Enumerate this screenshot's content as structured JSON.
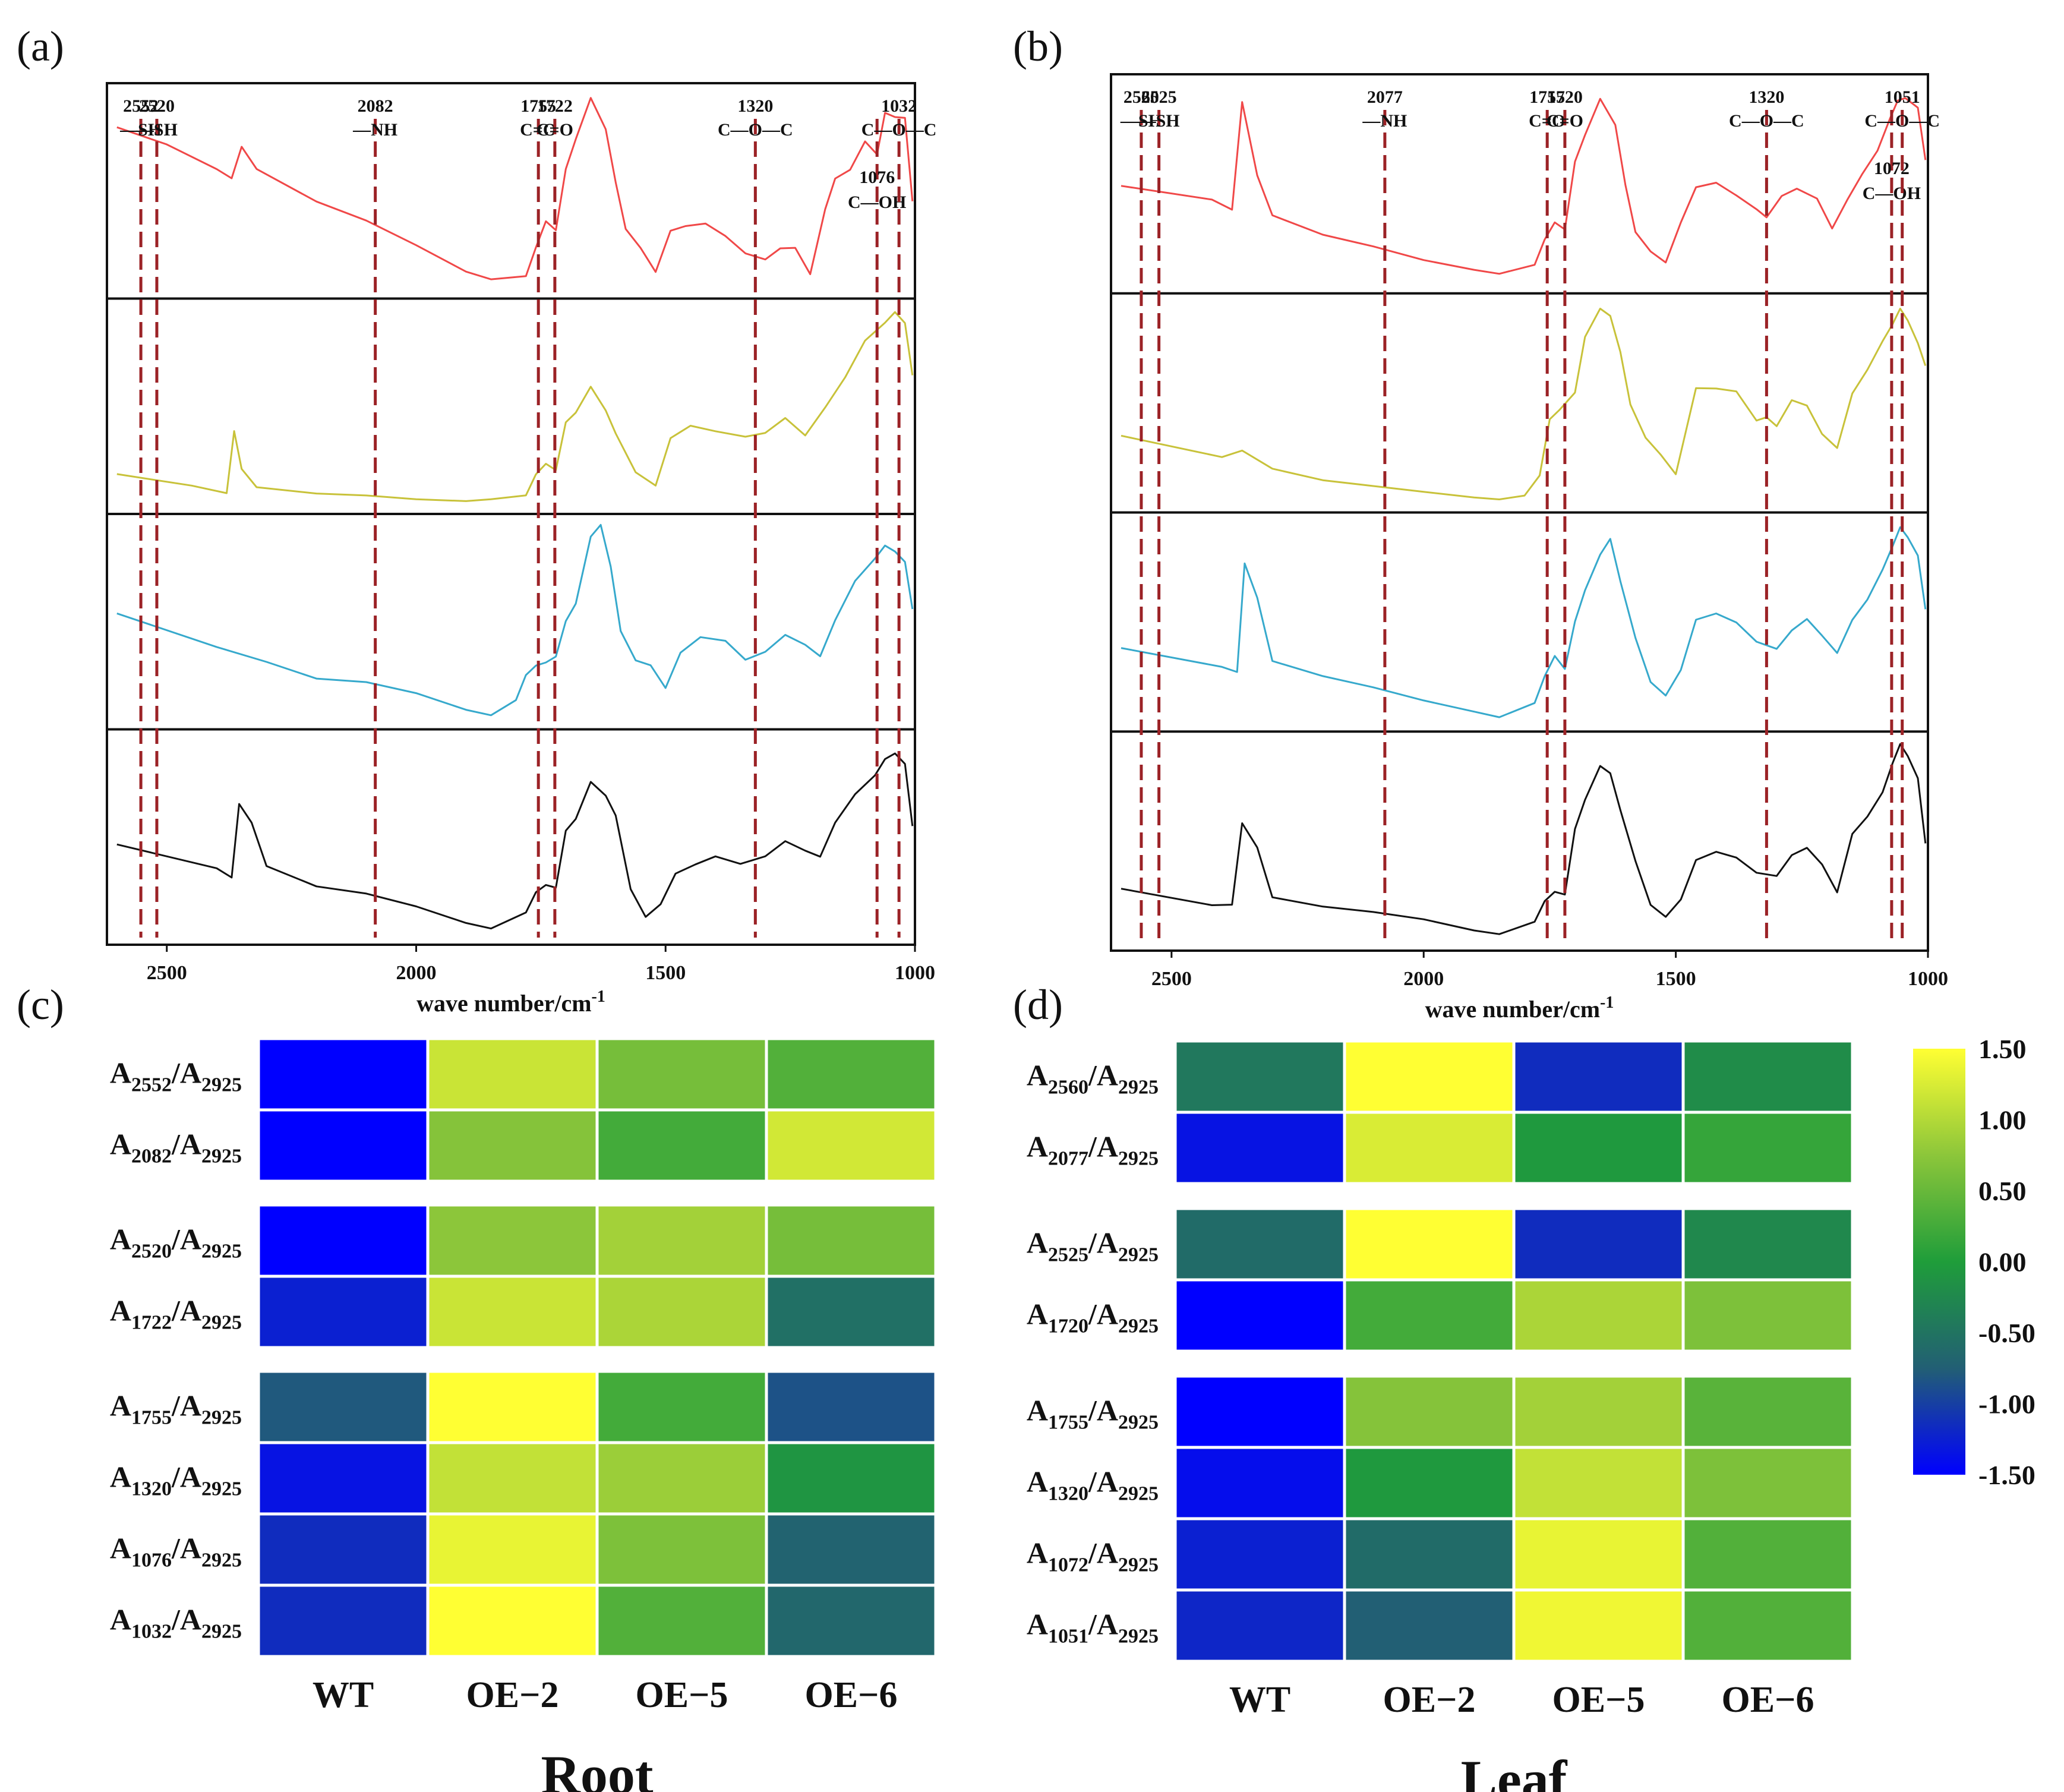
{
  "chart_data": [
    {
      "panel": "(a)",
      "type": "line",
      "title": "",
      "xlabel": "wave number/cm",
      "xlabel_superscript": "-1",
      "x_range": [
        2620,
        1000
      ],
      "x_ticks": [
        "2500",
        "2000",
        "1500",
        "1000"
      ],
      "grid": false,
      "series": [
        {
          "name": "red trace",
          "color": "#f04848",
          "x": [
            2600,
            2500,
            2400,
            2370,
            2350,
            2320,
            2200,
            2100,
            2000,
            1900,
            1850,
            1780,
            1760,
            1740,
            1720,
            1700,
            1680,
            1650,
            1620,
            1600,
            1580,
            1550,
            1520,
            1490,
            1460,
            1420,
            1380,
            1340,
            1300,
            1270,
            1240,
            1210,
            1180,
            1160,
            1130,
            1100,
            1076,
            1060,
            1040,
            1020,
            1005
          ],
          "y": [
            0.83,
            0.74,
            0.61,
            0.55,
            0.73,
            0.6,
            0.44,
            0.34,
            0.21,
            0.07,
            0.03,
            0.05,
            0.19,
            0.32,
            0.28,
            0.62,
            0.78,
            1.0,
            0.82,
            0.55,
            0.3,
            0.2,
            0.06,
            0.27,
            0.3,
            0.32,
            0.26,
            0.15,
            0.14,
            0.19,
            0.18,
            0.04,
            0.4,
            0.55,
            0.61,
            0.77,
            0.7,
            0.9,
            0.88,
            0.89,
            0.44
          ]
        },
        {
          "name": "yellow trace",
          "color": "#c8c23a",
          "x": [
            2600,
            2450,
            2380,
            2365,
            2350,
            2320,
            2200,
            2100,
            2000,
            1900,
            1850,
            1780,
            1760,
            1740,
            1720,
            1700,
            1680,
            1650,
            1620,
            1600,
            1560,
            1520,
            1490,
            1450,
            1400,
            1340,
            1300,
            1260,
            1220,
            1180,
            1140,
            1100,
            1060,
            1040,
            1020,
            1005
          ],
          "y": [
            0.14,
            0.08,
            0.04,
            0.35,
            0.17,
            0.06,
            0.04,
            0.03,
            0.01,
            0.0,
            0.01,
            0.02,
            0.12,
            0.18,
            0.16,
            0.42,
            0.46,
            0.61,
            0.48,
            0.36,
            0.13,
            0.08,
            0.32,
            0.4,
            0.37,
            0.33,
            0.36,
            0.42,
            0.35,
            0.48,
            0.65,
            0.85,
            0.93,
            1.0,
            0.95,
            0.65
          ]
        },
        {
          "name": "blue trace",
          "color": "#36a9cc",
          "x": [
            2600,
            2400,
            2300,
            2200,
            2100,
            2000,
            1900,
            1850,
            1800,
            1780,
            1760,
            1740,
            1720,
            1700,
            1680,
            1650,
            1630,
            1610,
            1590,
            1560,
            1530,
            1500,
            1470,
            1430,
            1380,
            1340,
            1300,
            1260,
            1220,
            1190,
            1160,
            1120,
            1080,
            1060,
            1040,
            1020,
            1005
          ],
          "y": [
            0.55,
            0.37,
            0.29,
            0.2,
            0.18,
            0.12,
            0.03,
            0.0,
            0.08,
            0.2,
            0.25,
            0.28,
            0.32,
            0.5,
            0.58,
            0.95,
            1.0,
            0.78,
            0.45,
            0.28,
            0.25,
            0.14,
            0.34,
            0.4,
            0.38,
            0.3,
            0.33,
            0.42,
            0.38,
            0.32,
            0.5,
            0.72,
            0.82,
            0.9,
            0.88,
            0.82,
            0.55
          ]
        },
        {
          "name": "black trace",
          "color": "#111111",
          "x": [
            2600,
            2400,
            2370,
            2355,
            2330,
            2300,
            2200,
            2100,
            2000,
            1900,
            1850,
            1780,
            1760,
            1740,
            1720,
            1700,
            1680,
            1650,
            1620,
            1600,
            1570,
            1540,
            1510,
            1480,
            1440,
            1400,
            1350,
            1300,
            1260,
            1220,
            1190,
            1160,
            1120,
            1080,
            1060,
            1040,
            1020,
            1005
          ],
          "y": [
            0.46,
            0.33,
            0.29,
            0.66,
            0.56,
            0.34,
            0.23,
            0.19,
            0.12,
            0.03,
            0.0,
            0.08,
            0.2,
            0.25,
            0.23,
            0.52,
            0.58,
            0.78,
            0.72,
            0.6,
            0.22,
            0.08,
            0.14,
            0.29,
            0.36,
            0.38,
            0.34,
            0.38,
            0.48,
            0.42,
            0.4,
            0.58,
            0.72,
            0.82,
            0.92,
            0.95,
            0.88,
            0.55
          ]
        }
      ],
      "dashed_markers": [
        {
          "x": 2552,
          "label": "2552",
          "group": "—SH"
        },
        {
          "x": 2520,
          "label": "2520",
          "group": "—SH"
        },
        {
          "x": 2082,
          "label": "2082",
          "group": "—NH"
        },
        {
          "x": 1755,
          "label": "1755",
          "group": "C=O"
        },
        {
          "x": 1722,
          "label": "1722",
          "group": "C=O"
        },
        {
          "x": 1320,
          "label": "1320",
          "group": "C—O—C"
        },
        {
          "x": 1076,
          "label": "1076",
          "group": "C—OH"
        },
        {
          "x": 1032,
          "label": "1032",
          "group": "C—O—C"
        }
      ]
    },
    {
      "panel": "(b)",
      "type": "line",
      "title": "",
      "xlabel": "wave number/cm",
      "xlabel_superscript": "-1",
      "x_range": [
        2620,
        1000
      ],
      "x_ticks": [
        "2500",
        "2000",
        "1500",
        "1000"
      ],
      "grid": false,
      "series": [
        {
          "name": "red trace",
          "color": "#f04848",
          "x": [
            2600,
            2420,
            2380,
            2360,
            2330,
            2300,
            2200,
            2100,
            2000,
            1900,
            1850,
            1780,
            1760,
            1740,
            1720,
            1700,
            1680,
            1650,
            1620,
            1600,
            1580,
            1550,
            1520,
            1490,
            1460,
            1420,
            1380,
            1340,
            1320,
            1290,
            1260,
            1220,
            1190,
            1160,
            1130,
            1100,
            1075,
            1060,
            1045,
            1020,
            1005
          ],
          "y": [
            0.48,
            0.4,
            0.37,
            0.93,
            0.55,
            0.33,
            0.23,
            0.17,
            0.1,
            0.05,
            0.03,
            0.08,
            0.2,
            0.28,
            0.25,
            0.62,
            0.76,
            0.95,
            0.8,
            0.5,
            0.25,
            0.15,
            0.08,
            0.28,
            0.47,
            0.5,
            0.44,
            0.35,
            0.32,
            0.42,
            0.46,
            0.42,
            0.25,
            0.4,
            0.55,
            0.68,
            0.85,
            0.92,
            0.95,
            0.9,
            0.62
          ]
        },
        {
          "name": "yellow trace",
          "color": "#c8c23a",
          "x": [
            2600,
            2400,
            2360,
            2300,
            2200,
            2100,
            2000,
            1900,
            1850,
            1800,
            1770,
            1750,
            1730,
            1700,
            1680,
            1650,
            1630,
            1610,
            1590,
            1560,
            1530,
            1500,
            1460,
            1420,
            1380,
            1340,
            1320,
            1300,
            1270,
            1240,
            1210,
            1180,
            1150,
            1120,
            1090,
            1070,
            1055,
            1040,
            1020,
            1005
          ],
          "y": [
            0.33,
            0.22,
            0.24,
            0.16,
            0.1,
            0.07,
            0.04,
            0.01,
            0.0,
            0.02,
            0.12,
            0.42,
            0.46,
            0.56,
            0.84,
            1.0,
            0.95,
            0.75,
            0.48,
            0.3,
            0.22,
            0.13,
            0.56,
            0.58,
            0.55,
            0.4,
            0.43,
            0.38,
            0.52,
            0.48,
            0.32,
            0.25,
            0.55,
            0.68,
            0.82,
            0.92,
            0.98,
            0.93,
            0.82,
            0.68
          ]
        },
        {
          "name": "blue trace",
          "color": "#36a9cc",
          "x": [
            2600,
            2400,
            2370,
            2355,
            2330,
            2300,
            2200,
            2100,
            2000,
            1900,
            1850,
            1780,
            1760,
            1740,
            1720,
            1700,
            1680,
            1650,
            1630,
            1610,
            1580,
            1550,
            1520,
            1490,
            1460,
            1420,
            1380,
            1340,
            1300,
            1270,
            1240,
            1210,
            1180,
            1150,
            1120,
            1090,
            1070,
            1055,
            1040,
            1020,
            1005
          ],
          "y": [
            0.37,
            0.27,
            0.24,
            0.8,
            0.62,
            0.3,
            0.22,
            0.16,
            0.09,
            0.03,
            0.0,
            0.06,
            0.2,
            0.32,
            0.26,
            0.5,
            0.65,
            0.85,
            0.92,
            0.7,
            0.4,
            0.18,
            0.12,
            0.25,
            0.5,
            0.55,
            0.48,
            0.4,
            0.35,
            0.46,
            0.52,
            0.42,
            0.32,
            0.5,
            0.62,
            0.78,
            0.9,
            0.98,
            0.95,
            0.85,
            0.55
          ]
        },
        {
          "name": "black trace",
          "color": "#111111",
          "x": [
            2600,
            2420,
            2380,
            2360,
            2330,
            2300,
            2200,
            2100,
            2000,
            1900,
            1850,
            1780,
            1760,
            1740,
            1720,
            1700,
            1680,
            1650,
            1630,
            1610,
            1580,
            1550,
            1520,
            1490,
            1460,
            1420,
            1380,
            1340,
            1300,
            1270,
            1240,
            1210,
            1180,
            1150,
            1120,
            1090,
            1070,
            1055,
            1040,
            1020,
            1005
          ],
          "y": [
            0.25,
            0.17,
            0.15,
            0.58,
            0.45,
            0.2,
            0.15,
            0.12,
            0.08,
            0.02,
            0.0,
            0.06,
            0.18,
            0.24,
            0.22,
            0.55,
            0.7,
            0.88,
            0.84,
            0.66,
            0.38,
            0.15,
            0.1,
            0.2,
            0.4,
            0.44,
            0.4,
            0.34,
            0.3,
            0.42,
            0.47,
            0.38,
            0.22,
            0.52,
            0.62,
            0.76,
            0.9,
            1.0,
            0.95,
            0.82,
            0.48
          ]
        }
      ],
      "dashed_markers": [
        {
          "x": 2560,
          "label": "2560",
          "group": "—SH"
        },
        {
          "x": 2525,
          "label": "2525",
          "group": "—SH"
        },
        {
          "x": 2077,
          "label": "2077",
          "group": "—NH"
        },
        {
          "x": 1755,
          "label": "1755",
          "group": "C=O"
        },
        {
          "x": 1720,
          "label": "1720",
          "group": "C=O"
        },
        {
          "x": 1320,
          "label": "1320",
          "group": "C—O—C"
        },
        {
          "x": 1072,
          "label": "1072",
          "group": "C—OH"
        },
        {
          "x": 1051,
          "label": "1051",
          "group": "C—O—C"
        }
      ]
    },
    {
      "panel": "(c)",
      "type": "heatmap",
      "tissue": "Root",
      "columns": [
        "WT",
        "OE−2",
        "OE−5",
        "OE−6"
      ],
      "row_groups": [
        [
          {
            "num": "A",
            "num_sub": "2552",
            "den": "/A",
            "den_sub": "2925",
            "values": [
              -1.5,
              1.15,
              0.6,
              0.35
            ]
          },
          {
            "num": "A",
            "num_sub": "2082",
            "den": "/A",
            "den_sub": "2925",
            "values": [
              -1.5,
              0.7,
              0.25,
              1.2
            ]
          }
        ],
        [
          {
            "num": "A",
            "num_sub": "2520",
            "den": "/A",
            "den_sub": "2925",
            "values": [
              -1.5,
              0.75,
              0.9,
              0.6
            ]
          },
          {
            "num": "A",
            "num_sub": "1722",
            "den": "/A",
            "den_sub": "2925",
            "values": [
              -1.25,
              1.15,
              0.95,
              -0.55
            ]
          }
        ],
        [
          {
            "num": "A",
            "num_sub": "1755",
            "den": "/A",
            "den_sub": "2925",
            "values": [
              -0.8,
              1.5,
              0.25,
              -0.85
            ]
          },
          {
            "num": "A",
            "num_sub": "1320",
            "den": "/A",
            "den_sub": "2925",
            "values": [
              -1.35,
              1.1,
              0.85,
              -0.1
            ]
          },
          {
            "num": "A",
            "num_sub": "1076",
            "den": "/A",
            "den_sub": "2925",
            "values": [
              -1.15,
              1.35,
              0.65,
              -0.7
            ]
          },
          {
            "num": "A",
            "num_sub": "1032",
            "den": "/A",
            "den_sub": "2925",
            "values": [
              -1.15,
              1.5,
              0.35,
              -0.65
            ]
          }
        ]
      ]
    },
    {
      "panel": "(d)",
      "type": "heatmap",
      "tissue": "Leaf",
      "columns": [
        "WT",
        "OE−2",
        "OE−5",
        "OE−6"
      ],
      "row_groups": [
        [
          {
            "num": "A",
            "num_sub": "2560",
            "den": "/A",
            "den_sub": "2925",
            "values": [
              -0.45,
              1.5,
              -1.15,
              -0.2
            ]
          },
          {
            "num": "A",
            "num_sub": "2077",
            "den": "/A",
            "den_sub": "2925",
            "values": [
              -1.35,
              1.25,
              -0.05,
              0.15
            ]
          }
        ],
        [
          {
            "num": "A",
            "num_sub": "2525",
            "den": "/A",
            "den_sub": "2925",
            "values": [
              -0.6,
              1.5,
              -1.15,
              -0.25
            ]
          },
          {
            "num": "A",
            "num_sub": "1720",
            "den": "/A",
            "den_sub": "2925",
            "values": [
              -1.5,
              0.25,
              0.95,
              0.65
            ]
          }
        ],
        [
          {
            "num": "A",
            "num_sub": "1755",
            "den": "/A",
            "den_sub": "2925",
            "values": [
              -1.5,
              0.7,
              0.9,
              0.4
            ]
          },
          {
            "num": "A",
            "num_sub": "1320",
            "den": "/A",
            "den_sub": "2925",
            "values": [
              -1.4,
              -0.05,
              1.1,
              0.65
            ]
          },
          {
            "num": "A",
            "num_sub": "1072",
            "den": "/A",
            "den_sub": "2925",
            "values": [
              -1.25,
              -0.6,
              1.35,
              0.35
            ]
          },
          {
            "num": "A",
            "num_sub": "1051",
            "den": "/A",
            "den_sub": "2925",
            "values": [
              -1.2,
              -0.75,
              1.4,
              0.35
            ]
          }
        ]
      ]
    }
  ],
  "colorbar": {
    "range": [
      -1.5,
      1.5
    ],
    "ticks": [
      "1.50",
      "1.00",
      "0.50",
      "0.00",
      "-0.50",
      "-1.00",
      "-1.50"
    ],
    "stops": [
      {
        "value": -1.5,
        "color": "#0000ff"
      },
      {
        "value": -0.75,
        "color": "#225f74"
      },
      {
        "value": 0.0,
        "color": "#1f9d3a"
      },
      {
        "value": 0.75,
        "color": "#8cc63a"
      },
      {
        "value": 1.5,
        "color": "#ffff33"
      }
    ]
  }
}
